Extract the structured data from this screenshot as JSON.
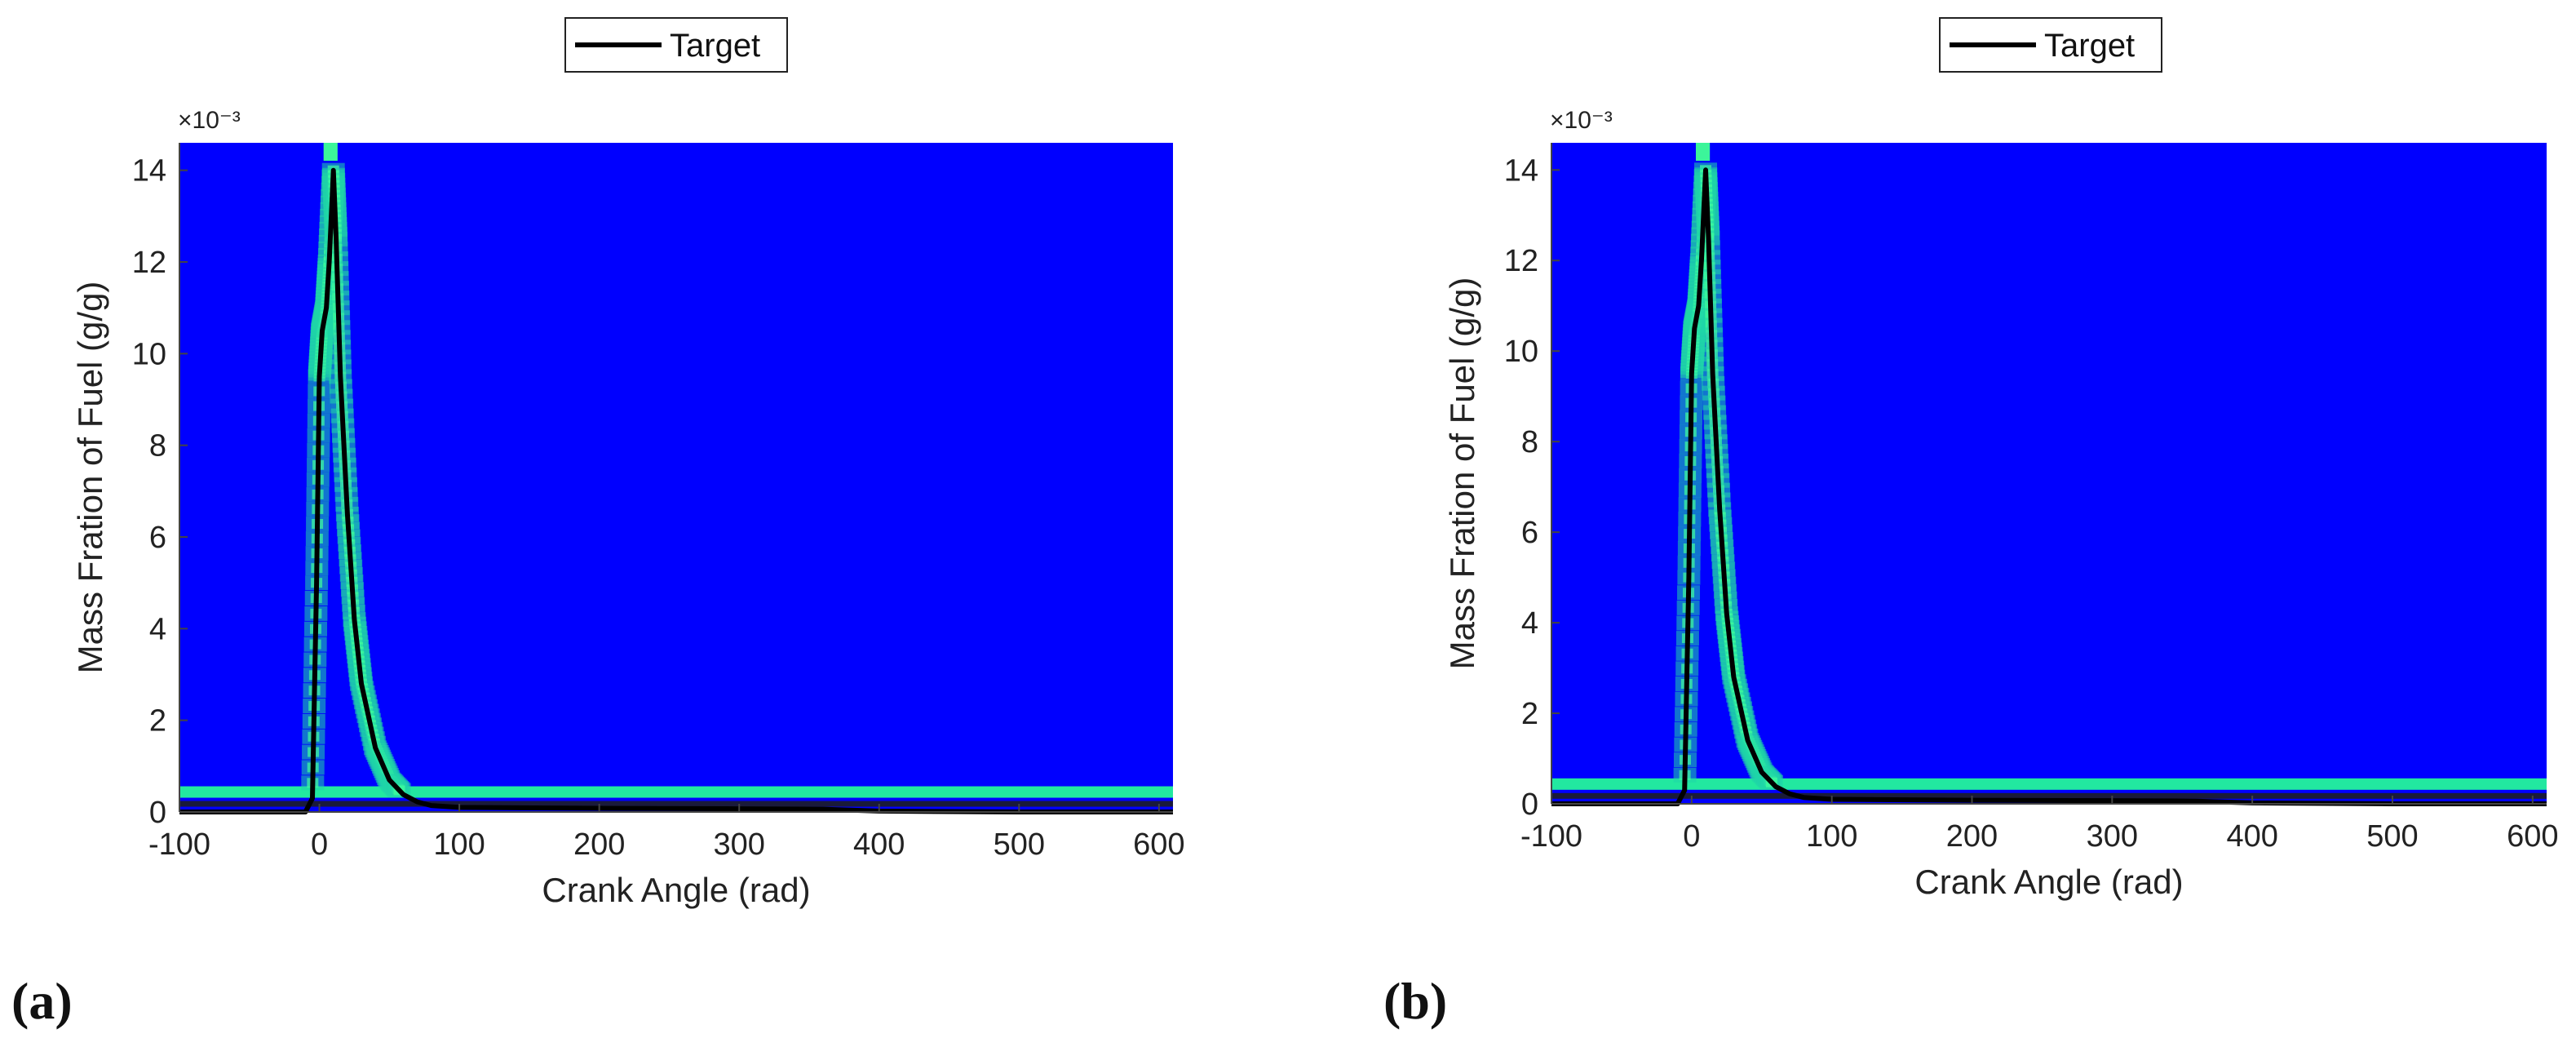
{
  "colors": {
    "background": "#0000FF",
    "band": "#22E8A0",
    "target_line": "#000000"
  },
  "chart_data": [
    {
      "panel_label": "(a)",
      "type": "heatmap",
      "legend": {
        "entries": [
          "Target"
        ],
        "placement": "top-outside"
      },
      "xlabel": "Crank Angle (rad)",
      "ylabel": "Mass Fration of Fuel (g/g)",
      "exponent_label": "×10⁻³",
      "xlim": [
        -100,
        610
      ],
      "ylim": [
        0,
        14.6
      ],
      "xticks": [
        -100,
        0,
        100,
        200,
        300,
        400,
        500,
        600
      ],
      "yticks": [
        0,
        2,
        4,
        6,
        8,
        10,
        12,
        14
      ],
      "series": [
        {
          "name": "Target",
          "x": [
            -100,
            -10,
            -5,
            -2,
            0,
            2,
            5,
            7,
            10,
            12,
            15,
            20,
            25,
            30,
            40,
            50,
            60,
            70,
            80,
            100,
            200,
            300,
            360,
            400,
            500,
            610
          ],
          "y": [
            0.0,
            0.0,
            0.3,
            5.0,
            9.5,
            10.5,
            11.0,
            12.0,
            14.0,
            12.5,
            9.5,
            6.5,
            4.2,
            2.8,
            1.4,
            0.7,
            0.38,
            0.22,
            0.14,
            0.1,
            0.08,
            0.07,
            0.06,
            0.02,
            0.0,
            0.0
          ]
        }
      ],
      "background_band": {
        "y": 0.4
      }
    },
    {
      "panel_label": "(b)",
      "type": "heatmap",
      "legend": {
        "entries": [
          "Target"
        ],
        "placement": "top-outside"
      },
      "xlabel": "Crank Angle (rad)",
      "ylabel": "Mass Fration of Fuel (g/g)",
      "exponent_label": "×10⁻³",
      "xlim": [
        -100,
        610
      ],
      "ylim": [
        0,
        14.6
      ],
      "xticks": [
        -100,
        0,
        100,
        200,
        300,
        400,
        500,
        600
      ],
      "yticks": [
        0,
        2,
        4,
        6,
        8,
        10,
        12,
        14
      ],
      "series": [
        {
          "name": "Target",
          "x": [
            -100,
            -10,
            -5,
            -2,
            0,
            2,
            5,
            7,
            10,
            12,
            15,
            20,
            25,
            30,
            40,
            50,
            60,
            70,
            80,
            100,
            200,
            300,
            360,
            400,
            500,
            610
          ],
          "y": [
            0.0,
            0.0,
            0.3,
            5.0,
            9.5,
            10.5,
            11.0,
            12.0,
            14.0,
            12.5,
            9.5,
            6.5,
            4.2,
            2.8,
            1.4,
            0.7,
            0.38,
            0.22,
            0.14,
            0.1,
            0.08,
            0.07,
            0.06,
            0.02,
            0.0,
            0.0
          ]
        }
      ],
      "background_band": {
        "y": 0.4
      }
    }
  ]
}
